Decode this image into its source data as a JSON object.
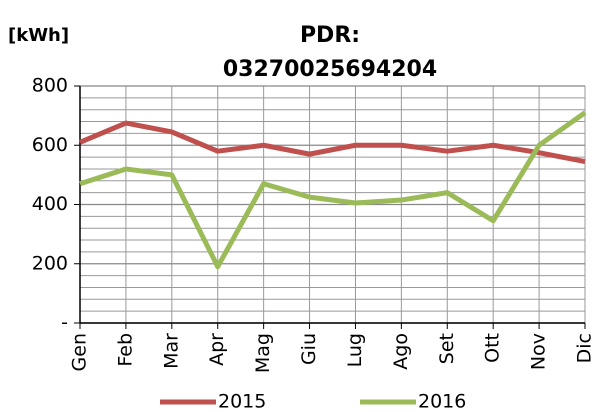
{
  "chart_data": {
    "type": "line",
    "title": [
      "PDR:",
      "03270025694204"
    ],
    "y_axis_label": "[kWh]",
    "categories": [
      "Gen",
      "Feb",
      "Mar",
      "Apr",
      "Mag",
      "Giu",
      "Lug",
      "Ago",
      "Set",
      "Ott",
      "Nov",
      "Dic"
    ],
    "series": [
      {
        "name": "2015",
        "color": "#c0504d",
        "values": [
          610,
          675,
          645,
          580,
          600,
          570,
          600,
          600,
          580,
          600,
          575,
          545
        ]
      },
      {
        "name": "2016",
        "color": "#9bbb59",
        "values": [
          470,
          520,
          500,
          190,
          470,
          425,
          405,
          415,
          440,
          345,
          600,
          710
        ]
      }
    ],
    "ylim": [
      0,
      800
    ],
    "yticks": [
      {
        "value": 0,
        "label": "-"
      },
      200,
      400,
      600,
      800
    ],
    "minor_yticks": [
      40,
      80,
      120,
      160,
      240,
      280,
      320,
      360,
      440,
      480,
      520,
      560,
      640,
      680,
      720,
      760
    ],
    "grid": true,
    "legend": "bottom"
  }
}
